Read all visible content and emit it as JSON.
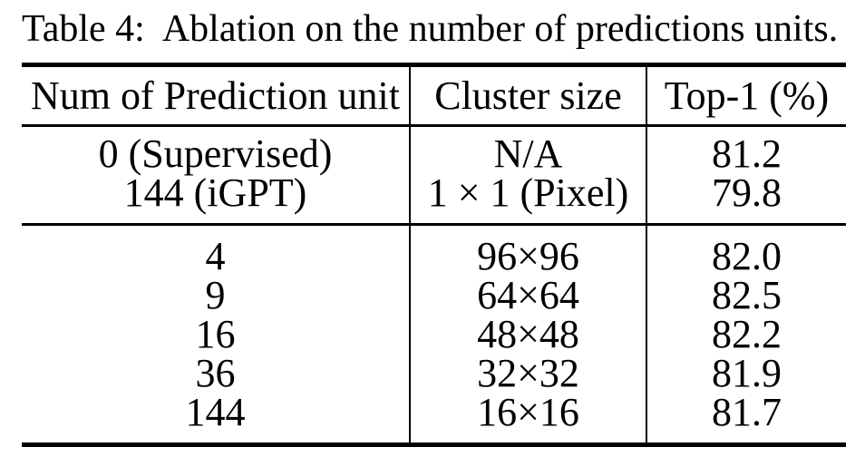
{
  "caption": {
    "label": "Table 4:",
    "text": "Ablation on the number of predictions units."
  },
  "table": {
    "columns": [
      "Num of Prediction unit",
      "Cluster size",
      "Top-1 (%)"
    ],
    "sections": [
      {
        "rows": [
          {
            "cells": [
              "0 (Supervised)",
              "N/A",
              "81.2"
            ]
          },
          {
            "cells": [
              "144 (iGPT)",
              "1 × 1 (Pixel)",
              "79.8"
            ]
          }
        ]
      },
      {
        "rows": [
          {
            "cells": [
              "4",
              "96×96",
              "82.0"
            ]
          },
          {
            "cells": [
              "9",
              "64×64",
              "82.5"
            ]
          },
          {
            "cells": [
              "16",
              "48×48",
              "82.2"
            ]
          },
          {
            "cells": [
              "36",
              "32×32",
              "81.9"
            ]
          },
          {
            "cells": [
              "144",
              "16×16",
              "81.7"
            ]
          }
        ]
      }
    ]
  },
  "colors": {
    "background": "#ffffff",
    "text": "#000000",
    "rule": "#000000"
  }
}
